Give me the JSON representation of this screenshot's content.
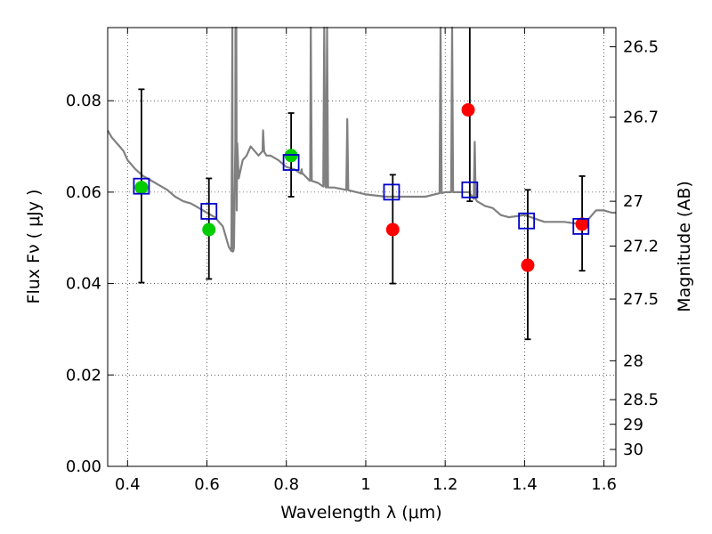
{
  "chart_data": {
    "type": "scatter",
    "xlabel": "Wavelength  λ (μm)",
    "ylabel": "Flux  Fν  ( μJy )",
    "y2label": "Magnitude (AB)",
    "xlim": [
      0.35,
      1.63
    ],
    "ylim": [
      0.0,
      0.096
    ],
    "grid": true,
    "x_ticks": [
      {
        "value": 0.4,
        "label": "0.4"
      },
      {
        "value": 0.6,
        "label": "0.6"
      },
      {
        "value": 0.8,
        "label": "0.8"
      },
      {
        "value": 1.0,
        "label": "1"
      },
      {
        "value": 1.2,
        "label": "1.2"
      },
      {
        "value": 1.4,
        "label": "1.4"
      },
      {
        "value": 1.6,
        "label": "1.6"
      }
    ],
    "y_ticks": [
      {
        "value": 0.0,
        "label": "0.00"
      },
      {
        "value": 0.02,
        "label": "0.02"
      },
      {
        "value": 0.04,
        "label": "0.04"
      },
      {
        "value": 0.06,
        "label": "0.06"
      },
      {
        "value": 0.08,
        "label": "0.08"
      }
    ],
    "y2_ticks": [
      {
        "label": "26.5",
        "flux": 0.0918
      },
      {
        "label": "26.7",
        "flux": 0.0764
      },
      {
        "label": "27",
        "flux": 0.058
      },
      {
        "label": "27.2",
        "flux": 0.0482
      },
      {
        "label": "27.5",
        "flux": 0.0366
      },
      {
        "label": "28",
        "flux": 0.0231
      },
      {
        "label": "28.5",
        "flux": 0.0146
      },
      {
        "label": "29",
        "flux": 0.0092
      },
      {
        "label": "30",
        "flux": 0.0037
      }
    ],
    "colors": {
      "model": "#808080",
      "green_points": "#00cc00",
      "red_points": "#ff0000",
      "squares": "#0000cc",
      "errorbars": "#000000"
    },
    "series": [
      {
        "kind": "model-spectrum",
        "x": [
          0.35,
          0.36,
          0.37,
          0.38,
          0.39,
          0.4,
          0.42,
          0.44,
          0.46,
          0.48,
          0.5,
          0.52,
          0.54,
          0.56,
          0.58,
          0.6,
          0.62,
          0.64,
          0.655,
          0.665,
          0.668,
          0.672,
          0.675,
          0.68,
          0.69,
          0.7,
          0.71,
          0.72,
          0.73,
          0.74,
          0.75,
          0.76,
          0.78,
          0.8,
          0.82,
          0.84,
          0.86,
          0.88,
          0.9,
          0.92,
          0.95,
          1.0,
          1.05,
          1.1,
          1.15,
          1.2,
          1.22,
          1.24,
          1.26,
          1.28,
          1.3,
          1.32,
          1.34,
          1.36,
          1.4,
          1.45,
          1.5,
          1.54,
          1.56,
          1.58,
          1.6,
          1.62,
          1.63
        ],
        "y": [
          0.0735,
          0.072,
          0.071,
          0.07,
          0.069,
          0.067,
          0.065,
          0.0635,
          0.0625,
          0.0615,
          0.0605,
          0.059,
          0.058,
          0.0575,
          0.0565,
          0.0555,
          0.0545,
          0.0525,
          0.048,
          0.047,
          0.048,
          0.1,
          0.056,
          0.063,
          0.067,
          0.068,
          0.07,
          0.069,
          0.068,
          0.069,
          0.068,
          0.068,
          0.067,
          0.0655,
          0.065,
          0.064,
          0.0625,
          0.062,
          0.061,
          0.061,
          0.0605,
          0.0595,
          0.059,
          0.059,
          0.059,
          0.06,
          0.06,
          0.06,
          0.06,
          0.058,
          0.057,
          0.0565,
          0.055,
          0.0545,
          0.055,
          0.0535,
          0.0535,
          0.053,
          0.054,
          0.056,
          0.056,
          0.0555,
          0.0555
        ]
      },
      {
        "kind": "green-points",
        "x": [
          0.435,
          0.605,
          0.812
        ],
        "y": [
          0.061,
          0.0518,
          0.068
        ]
      },
      {
        "kind": "red-points",
        "x": [
          1.068,
          1.258,
          1.408,
          1.545
        ],
        "y": [
          0.0518,
          0.078,
          0.044,
          0.053
        ]
      },
      {
        "kind": "model-squares",
        "x": [
          0.435,
          0.605,
          0.812,
          1.065,
          1.262,
          1.405,
          1.542
        ],
        "y": [
          0.0613,
          0.0558,
          0.0665,
          0.06,
          0.0605,
          0.0537,
          0.0525
        ]
      },
      {
        "kind": "errorbars",
        "x": [
          0.435,
          0.605,
          0.812,
          1.068,
          1.262,
          1.408,
          1.545
        ],
        "low": [
          0.0402,
          0.041,
          0.059,
          0.04,
          0.058,
          0.0278,
          0.0428
        ],
        "high": [
          0.0825,
          0.063,
          0.0773,
          0.0638,
          0.096,
          0.0605,
          0.0635
        ]
      }
    ],
    "emission_spikes": [
      {
        "x": 0.664,
        "y": 0.096
      },
      {
        "x": 0.674,
        "y": 0.096
      },
      {
        "x": 0.8615,
        "y": 0.096
      },
      {
        "x": 0.8955,
        "y": 0.096
      },
      {
        "x": 0.9025,
        "y": 0.096
      },
      {
        "x": 1.1885,
        "y": 0.096
      },
      {
        "x": 1.2175,
        "y": 0.096
      },
      {
        "x": 0.7415,
        "y": 0.0735
      },
      {
        "x": 0.8385,
        "y": 0.065
      },
      {
        "x": 0.9535,
        "y": 0.076
      },
      {
        "x": 1.2745,
        "y": 0.071
      }
    ]
  }
}
